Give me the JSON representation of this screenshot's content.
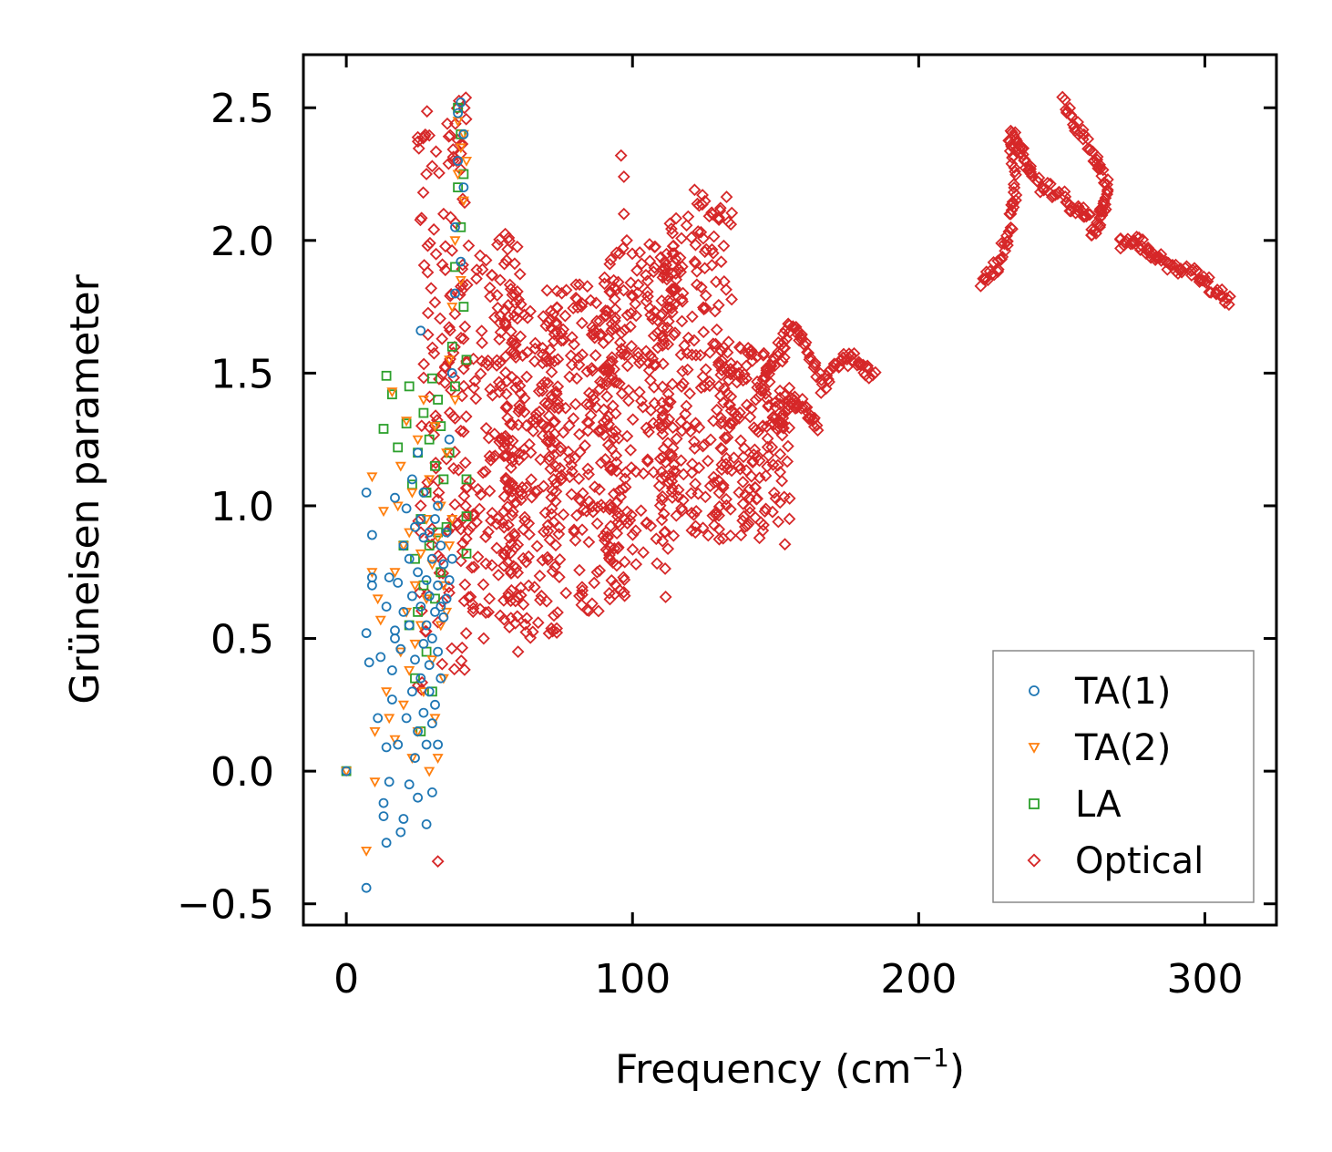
{
  "chart_data": {
    "type": "scatter",
    "title": "",
    "xlabel": "Frequency (cm",
    "xlabel_sup": "−1",
    "xlabel_suffix": ")",
    "ylabel": "Grüneisen parameter",
    "xlim": [
      -15,
      325
    ],
    "ylim": [
      -0.58,
      2.7
    ],
    "xticks": [
      0,
      100,
      200,
      300
    ],
    "xtick_labels": [
      "0",
      "100",
      "200",
      "300"
    ],
    "yticks": [
      -0.5,
      0.0,
      0.5,
      1.0,
      1.5,
      2.0,
      2.5
    ],
    "ytick_labels": [
      "−0.5",
      "0.0",
      "0.5",
      "1.0",
      "1.5",
      "2.0",
      "2.5"
    ],
    "legend_position": "bottom-right",
    "series": [
      {
        "name": "TA(1)",
        "marker": "circle",
        "color": "#1f77b4",
        "points": [
          [
            0,
            0.0
          ],
          [
            7,
            -0.44
          ],
          [
            7,
            1.05
          ],
          [
            7,
            0.52
          ],
          [
            8,
            0.41
          ],
          [
            9,
            0.89
          ],
          [
            9,
            0.73
          ],
          [
            9,
            0.7
          ],
          [
            11,
            0.2
          ],
          [
            12,
            0.43
          ],
          [
            13,
            -0.12
          ],
          [
            13,
            -0.17
          ],
          [
            14,
            -0.27
          ],
          [
            14,
            0.09
          ],
          [
            14,
            0.62
          ],
          [
            15,
            -0.04
          ],
          [
            15,
            0.73
          ],
          [
            16,
            0.27
          ],
          [
            16,
            0.38
          ],
          [
            17,
            0.53
          ],
          [
            17,
            0.5
          ],
          [
            17,
            1.03
          ],
          [
            18,
            0.1
          ],
          [
            18,
            0.71
          ],
          [
            19,
            0.46
          ],
          [
            19,
            -0.23
          ],
          [
            20,
            0.6
          ],
          [
            20,
            0.85
          ],
          [
            20,
            -0.18
          ],
          [
            21,
            0.2
          ],
          [
            21,
            0.99
          ],
          [
            22,
            0.55
          ],
          [
            22,
            0.8
          ],
          [
            22,
            -0.05
          ],
          [
            23,
            0.3
          ],
          [
            23,
            1.1
          ],
          [
            23,
            0.66
          ],
          [
            24,
            0.42
          ],
          [
            24,
            0.92
          ],
          [
            24,
            0.05
          ],
          [
            25,
            0.15
          ],
          [
            25,
            0.75
          ],
          [
            25,
            1.2
          ],
          [
            25,
            -0.1
          ],
          [
            26,
            0.35
          ],
          [
            26,
            0.62
          ],
          [
            26,
            1.66
          ],
          [
            26,
            0.95
          ],
          [
            27,
            0.48
          ],
          [
            27,
            0.22
          ],
          [
            27,
            0.88
          ],
          [
            27,
            1.05
          ],
          [
            28,
            0.1
          ],
          [
            28,
            0.55
          ],
          [
            28,
            0.72
          ],
          [
            28,
            -0.2
          ],
          [
            29,
            0.3
          ],
          [
            29,
            0.66
          ],
          [
            29,
            0.9
          ],
          [
            29,
            0.4
          ],
          [
            30,
            0.18
          ],
          [
            30,
            0.5
          ],
          [
            30,
            0.8
          ],
          [
            30,
            -0.08
          ],
          [
            31,
            0.6
          ],
          [
            31,
            0.95
          ],
          [
            31,
            0.25
          ],
          [
            32,
            0.45
          ],
          [
            32,
            0.7
          ],
          [
            32,
            1.0
          ],
          [
            32,
            0.1
          ],
          [
            33,
            0.35
          ],
          [
            33,
            0.62
          ],
          [
            33,
            0.85
          ],
          [
            34,
            0.58
          ],
          [
            34,
            0.78
          ],
          [
            35,
            0.65
          ],
          [
            35,
            0.9
          ],
          [
            36,
            0.72
          ],
          [
            36,
            1.25
          ],
          [
            37,
            1.5
          ],
          [
            37,
            0.8
          ],
          [
            38,
            1.8
          ],
          [
            38,
            2.05
          ],
          [
            39,
            2.3
          ],
          [
            39,
            2.48
          ],
          [
            40,
            2.52
          ],
          [
            40,
            1.92
          ],
          [
            41,
            2.2
          ],
          [
            41,
            2.4
          ]
        ]
      },
      {
        "name": "TA(2)",
        "marker": "triangle-down",
        "color": "#ff7f0e",
        "points": [
          [
            0,
            0.0
          ],
          [
            7,
            -0.3
          ],
          [
            9,
            0.75
          ],
          [
            9,
            1.11
          ],
          [
            10,
            -0.04
          ],
          [
            10,
            0.15
          ],
          [
            11,
            0.65
          ],
          [
            12,
            0.57
          ],
          [
            13,
            0.98
          ],
          [
            14,
            0.3
          ],
          [
            15,
            0.2
          ],
          [
            16,
            1.43
          ],
          [
            17,
            0.75
          ],
          [
            17,
            0.12
          ],
          [
            18,
            1.0
          ],
          [
            19,
            0.45
          ],
          [
            19,
            1.15
          ],
          [
            20,
            0.85
          ],
          [
            20,
            0.25
          ],
          [
            21,
            0.6
          ],
          [
            21,
            1.32
          ],
          [
            22,
            0.38
          ],
          [
            22,
            0.9
          ],
          [
            23,
            0.05
          ],
          [
            23,
            1.05
          ],
          [
            24,
            0.7
          ],
          [
            24,
            0.48
          ],
          [
            25,
            1.25
          ],
          [
            25,
            0.15
          ],
          [
            26,
            0.82
          ],
          [
            26,
            0.55
          ],
          [
            27,
            1.4
          ],
          [
            27,
            0.3
          ],
          [
            28,
            0.95
          ],
          [
            28,
            0.65
          ],
          [
            29,
            0.0
          ],
          [
            29,
            1.1
          ],
          [
            30,
            0.42
          ],
          [
            30,
            0.78
          ],
          [
            31,
            1.3
          ],
          [
            31,
            0.2
          ],
          [
            32,
            0.88
          ],
          [
            32,
            0.05
          ],
          [
            33,
            0.55
          ],
          [
            33,
            1.0
          ],
          [
            34,
            0.7
          ],
          [
            34,
            0.35
          ],
          [
            35,
            1.2
          ],
          [
            35,
            0.6
          ],
          [
            36,
            0.85
          ],
          [
            36,
            1.55
          ],
          [
            37,
            1.75
          ],
          [
            37,
            0.95
          ],
          [
            38,
            2.0
          ],
          [
            38,
            1.4
          ],
          [
            39,
            2.25
          ],
          [
            39,
            2.45
          ],
          [
            40,
            2.35
          ],
          [
            40,
            1.85
          ],
          [
            41,
            2.15
          ],
          [
            41,
            2.4
          ],
          [
            42,
            2.3
          ]
        ]
      },
      {
        "name": "LA",
        "marker": "square",
        "color": "#2ca02c",
        "points": [
          [
            0,
            0.0
          ],
          [
            13,
            1.29
          ],
          [
            14,
            1.49
          ],
          [
            16,
            1.42
          ],
          [
            18,
            1.22
          ],
          [
            20,
            0.85
          ],
          [
            21,
            1.31
          ],
          [
            22,
            1.45
          ],
          [
            22,
            0.55
          ],
          [
            23,
            1.08
          ],
          [
            24,
            0.8
          ],
          [
            24,
            0.35
          ],
          [
            25,
            1.2
          ],
          [
            25,
            0.6
          ],
          [
            26,
            0.95
          ],
          [
            26,
            0.15
          ],
          [
            27,
            1.35
          ],
          [
            27,
            0.7
          ],
          [
            28,
            1.05
          ],
          [
            28,
            0.45
          ],
          [
            29,
            1.25
          ],
          [
            29,
            0.85
          ],
          [
            30,
            1.48
          ],
          [
            30,
            0.3
          ],
          [
            31,
            1.15
          ],
          [
            31,
            0.65
          ],
          [
            32,
            1.4
          ],
          [
            32,
            0.9
          ],
          [
            33,
            0.75
          ],
          [
            33,
            1.3
          ],
          [
            34,
            1.1
          ],
          [
            35,
            0.92
          ],
          [
            36,
            1.2
          ],
          [
            37,
            1.6
          ],
          [
            38,
            1.9
          ],
          [
            38,
            1.45
          ],
          [
            39,
            2.2
          ],
          [
            39,
            2.5
          ],
          [
            40,
            2.4
          ],
          [
            40,
            2.05
          ],
          [
            41,
            1.75
          ],
          [
            41,
            2.25
          ],
          [
            42,
            1.55
          ],
          [
            42,
            1.1
          ],
          [
            42,
            0.96
          ],
          [
            42,
            0.82
          ]
        ]
      },
      {
        "name": "Optical",
        "marker": "diamond",
        "color": "#d62728",
        "bands": [
          {
            "x0": 25,
            "x1": 42,
            "y0": 0.3,
            "y1": 2.55,
            "n": 140
          },
          {
            "x0": 40,
            "x1": 62,
            "y0": 0.55,
            "y1": 2.05,
            "n": 180
          },
          {
            "x0": 55,
            "x1": 75,
            "y0": 0.5,
            "y1": 1.75,
            "n": 160
          },
          {
            "x0": 70,
            "x1": 95,
            "y0": 0.6,
            "y1": 1.85,
            "n": 200
          },
          {
            "x0": 90,
            "x1": 115,
            "y0": 0.65,
            "y1": 2.0,
            "n": 220
          },
          {
            "x0": 110,
            "x1": 135,
            "y0": 0.83,
            "y1": 2.2,
            "n": 200
          },
          {
            "x0": 130,
            "x1": 155,
            "y0": 0.85,
            "y1": 1.6,
            "n": 160
          }
        ],
        "points": [
          [
            32,
            -0.34
          ],
          [
            48,
            0.5
          ],
          [
            96,
            2.32
          ],
          [
            97,
            2.24
          ],
          [
            97,
            2.1
          ],
          [
            98,
            2.0
          ],
          [
            28,
            2.25
          ],
          [
            30,
            2.28
          ],
          [
            34,
            2.1
          ],
          [
            50,
            0.65
          ],
          [
            60,
            0.45
          ]
        ],
        "paths": [
          [
            [
              145,
              1.45
            ],
            [
              150,
              1.55
            ],
            [
              155,
              1.68
            ],
            [
              160,
              1.62
            ],
            [
              166,
              1.45
            ],
            [
              172,
              1.55
            ],
            [
              178,
              1.55
            ],
            [
              185,
              1.49
            ]
          ],
          [
            [
              150,
              1.3
            ],
            [
              155,
              1.4
            ],
            [
              160,
              1.38
            ],
            [
              165,
              1.28
            ]
          ],
          [
            [
              222,
              1.83
            ],
            [
              228,
              1.92
            ],
            [
              232,
              2.05
            ],
            [
              234,
              2.2
            ],
            [
              232,
              2.4
            ],
            [
              236,
              2.35
            ],
            [
              240,
              2.22
            ],
            [
              248,
              2.18
            ],
            [
              255,
              2.12
            ],
            [
              260,
              2.1
            ]
          ],
          [
            [
              250,
              2.52
            ],
            [
              256,
              2.42
            ],
            [
              262,
              2.3
            ],
            [
              266,
              2.2
            ],
            [
              264,
              2.1
            ],
            [
              260,
              2.02
            ]
          ],
          [
            [
              270,
              1.98
            ],
            [
              276,
              2.0
            ],
            [
              282,
              1.95
            ],
            [
              288,
              1.9
            ],
            [
              296,
              1.88
            ],
            [
              302,
              1.83
            ],
            [
              310,
              1.77
            ]
          ]
        ]
      }
    ]
  }
}
